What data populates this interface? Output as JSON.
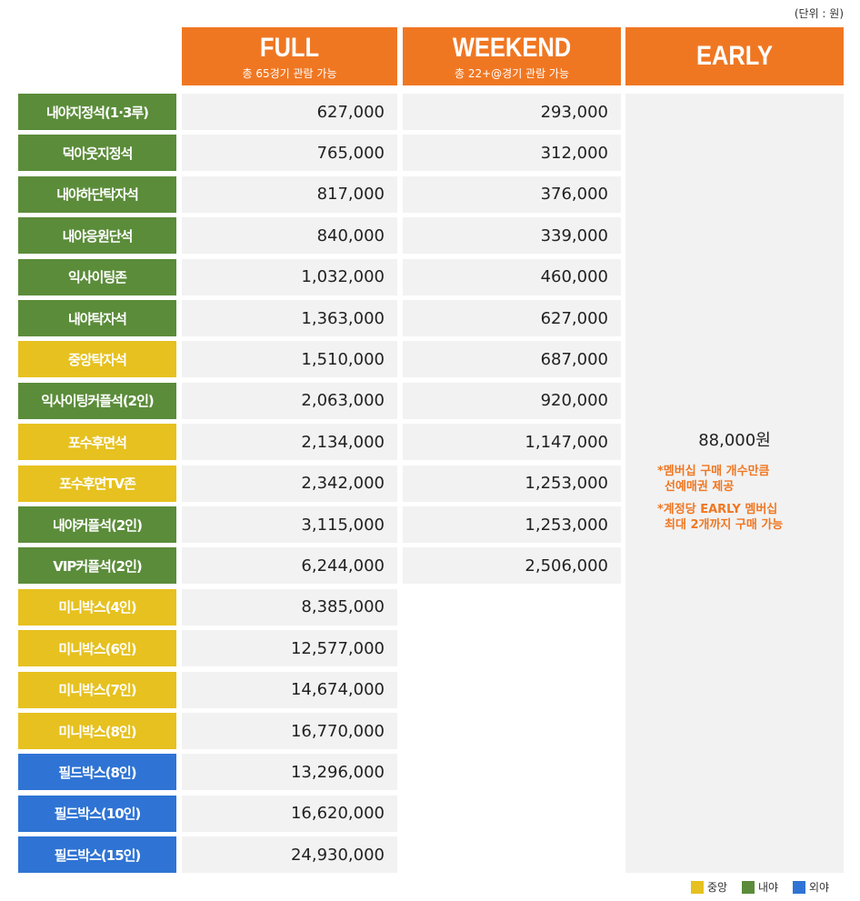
{
  "unit": "(단위 : 원)",
  "columns": [
    {
      "title": "FULL",
      "subtitle": "총 65경기 관람 가능"
    },
    {
      "title": "WEEKEND",
      "subtitle": "총 22+@경기 관람 가능"
    },
    {
      "title": "EARLY"
    }
  ],
  "rows": [
    {
      "label": "내야지정석(1·3루)",
      "color": "#5b8c3a",
      "full": "627,000",
      "weekend": "293,000"
    },
    {
      "label": "덕아웃지정석",
      "color": "#5b8c3a",
      "full": "765,000",
      "weekend": "312,000"
    },
    {
      "label": "내야하단탁자석",
      "color": "#5b8c3a",
      "full": "817,000",
      "weekend": "376,000"
    },
    {
      "label": "내야응원단석",
      "color": "#5b8c3a",
      "full": "840,000",
      "weekend": "339,000"
    },
    {
      "label": "익사이팅존",
      "color": "#5b8c3a",
      "full": "1,032,000",
      "weekend": "460,000"
    },
    {
      "label": "내야탁자석",
      "color": "#5b8c3a",
      "full": "1,363,000",
      "weekend": "627,000"
    },
    {
      "label": "중앙탁자석",
      "color": "#e6c11f",
      "full": "1,510,000",
      "weekend": "687,000"
    },
    {
      "label": "익사이팅커플석(2인)",
      "color": "#5b8c3a",
      "full": "2,063,000",
      "weekend": "920,000"
    },
    {
      "label": "포수후면석",
      "color": "#e6c11f",
      "full": "2,134,000",
      "weekend": "1,147,000"
    },
    {
      "label": "포수후면TV존",
      "color": "#e6c11f",
      "full": "2,342,000",
      "weekend": "1,253,000"
    },
    {
      "label": "내야커플석(2인)",
      "color": "#5b8c3a",
      "full": "3,115,000",
      "weekend": "1,253,000"
    },
    {
      "label": "VIP커플석(2인)",
      "color": "#5b8c3a",
      "full": "6,244,000",
      "weekend": "2,506,000"
    },
    {
      "label": "미니박스(4인)",
      "color": "#e6c11f",
      "full": "8,385,000",
      "weekend": null
    },
    {
      "label": "미니박스(6인)",
      "color": "#e6c11f",
      "full": "12,577,000",
      "weekend": null
    },
    {
      "label": "미니박스(7인)",
      "color": "#e6c11f",
      "full": "14,674,000",
      "weekend": null
    },
    {
      "label": "미니박스(8인)",
      "color": "#e6c11f",
      "full": "16,770,000",
      "weekend": null
    },
    {
      "label": "필드박스(8인)",
      "color": "#2f74d4",
      "full": "13,296,000",
      "weekend": null
    },
    {
      "label": "필드박스(10인)",
      "color": "#2f74d4",
      "full": "16,620,000",
      "weekend": null
    },
    {
      "label": "필드박스(15인)",
      "color": "#2f74d4",
      "full": "24,930,000",
      "weekend": null
    }
  ],
  "early": {
    "price": "88,000원",
    "notes": [
      [
        "*멤버십 구매 개수만큼",
        "선예매권 제공"
      ],
      [
        "*계정당 EARLY 멤버십",
        "최대 2개까지 구매 가능"
      ]
    ]
  },
  "legend": [
    {
      "label": "중앙",
      "color": "#e6c11f"
    },
    {
      "label": "내야",
      "color": "#5b8c3a"
    },
    {
      "label": "외야",
      "color": "#2f74d4"
    }
  ]
}
